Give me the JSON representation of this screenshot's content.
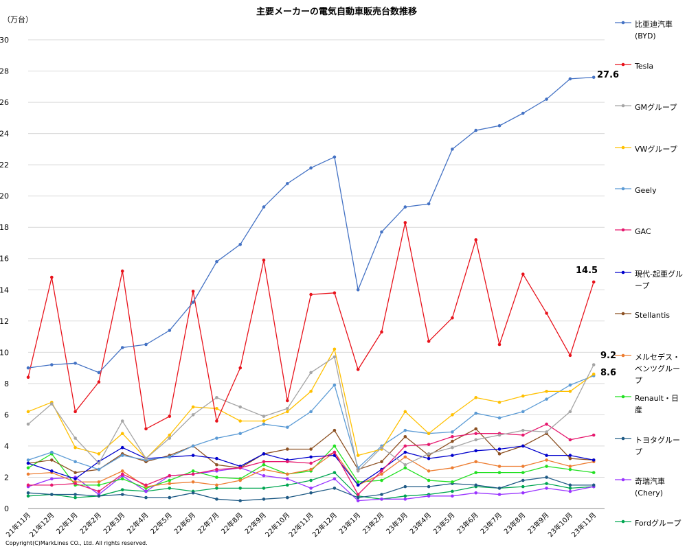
{
  "chart_data": {
    "type": "line",
    "title": "主要メーカーの電気自動車販売台数推移",
    "ylabel": "（万台）",
    "xlabel": "",
    "ylim": [
      0,
      30
    ],
    "yticks": [
      0,
      2,
      4,
      6,
      8,
      10,
      12,
      14,
      16,
      18,
      20,
      22,
      24,
      26,
      28,
      30
    ],
    "grid": "horizontal",
    "legend": "right",
    "categories": [
      "21年11月",
      "21年12月",
      "22年1月",
      "22年2月",
      "22年3月",
      "22年4月",
      "22年5月",
      "22年6月",
      "22年7月",
      "22年8月",
      "22年9月",
      "22年10月",
      "22年11月",
      "22年12月",
      "23年1月",
      "23年2月",
      "23年3月",
      "23年4月",
      "23年5月",
      "23年6月",
      "23年7月",
      "23年8月",
      "23年9月",
      "23年10月",
      "23年11月"
    ],
    "series": [
      {
        "name": "比亜迪汽車(BYD)",
        "color": "#4472C4",
        "values": [
          9.0,
          9.2,
          9.3,
          8.7,
          10.3,
          10.5,
          11.4,
          13.2,
          15.8,
          16.9,
          19.3,
          20.8,
          21.8,
          22.5,
          14.0,
          17.7,
          19.3,
          19.5,
          23.0,
          24.2,
          24.5,
          25.3,
          26.2,
          27.5,
          27.6
        ]
      },
      {
        "name": "Tesla",
        "color": "#E8121B",
        "values": [
          8.4,
          14.8,
          6.2,
          8.1,
          15.2,
          5.1,
          5.9,
          13.9,
          5.6,
          9.0,
          15.9,
          6.9,
          13.7,
          13.8,
          8.9,
          11.3,
          18.3,
          10.7,
          12.2,
          17.2,
          10.5,
          15.0,
          12.5,
          9.8,
          14.5
        ]
      },
      {
        "name": "GMグループ",
        "color": "#A5A5A5",
        "values": [
          5.4,
          6.7,
          4.5,
          2.9,
          5.6,
          3.2,
          4.5,
          6.0,
          7.1,
          6.5,
          5.9,
          6.4,
          8.7,
          9.7,
          2.4,
          3.9,
          2.8,
          3.5,
          3.9,
          4.4,
          4.7,
          5.0,
          4.9,
          6.2,
          9.2
        ]
      },
      {
        "name": "VWグループ",
        "color": "#FFC000",
        "values": [
          6.2,
          6.8,
          3.9,
          3.5,
          4.8,
          3.2,
          4.7,
          6.5,
          6.4,
          5.6,
          5.6,
          6.2,
          7.5,
          10.2,
          3.4,
          3.8,
          6.2,
          4.8,
          6.0,
          7.1,
          6.8,
          7.2,
          7.5,
          7.5,
          8.6
        ]
      },
      {
        "name": "Geely",
        "color": "#5B9BD5",
        "values": [
          3.1,
          3.6,
          3.0,
          2.5,
          3.4,
          3.1,
          3.3,
          4.0,
          4.5,
          4.8,
          5.4,
          5.2,
          6.2,
          7.9,
          2.6,
          4.0,
          5.0,
          4.8,
          4.9,
          6.1,
          5.8,
          6.2,
          7.0,
          7.9,
          8.5
        ]
      },
      {
        "name": "GAC",
        "color": "#E6186E",
        "values": [
          1.5,
          1.5,
          1.6,
          1.1,
          2.2,
          1.5,
          2.1,
          2.2,
          2.5,
          2.6,
          3.0,
          3.0,
          2.9,
          3.6,
          0.9,
          2.4,
          4.0,
          4.1,
          4.6,
          4.8,
          4.8,
          4.7,
          5.4,
          4.4,
          4.7
        ]
      },
      {
        "name": "現代-起亜グループ",
        "color": "#0000CC",
        "values": [
          2.9,
          2.4,
          1.9,
          3.0,
          3.9,
          3.2,
          3.3,
          3.4,
          3.2,
          2.7,
          3.5,
          3.1,
          3.3,
          3.4,
          1.5,
          2.5,
          3.6,
          3.2,
          3.4,
          3.7,
          3.8,
          4.0,
          3.4,
          3.4,
          3.1
        ]
      },
      {
        "name": "Stellantis",
        "color": "#8C5022",
        "values": [
          2.9,
          3.1,
          2.3,
          2.5,
          3.5,
          3.0,
          3.4,
          4.0,
          2.8,
          2.6,
          3.5,
          3.8,
          3.8,
          5.0,
          2.5,
          3.0,
          4.6,
          3.4,
          4.3,
          5.1,
          3.5,
          4.0,
          4.8,
          3.2,
          3.1
        ]
      },
      {
        "name": "メルセデス・ベンツグループ",
        "color": "#ED7D31",
        "values": [
          2.2,
          2.3,
          1.7,
          1.7,
          2.4,
          1.4,
          1.6,
          1.7,
          1.5,
          1.8,
          2.5,
          2.2,
          2.5,
          3.6,
          1.5,
          2.2,
          3.3,
          2.4,
          2.6,
          3.0,
          2.7,
          2.7,
          3.1,
          2.7,
          3.0
        ]
      },
      {
        "name": "Renault・日産",
        "color": "#21E021",
        "values": [
          2.6,
          3.5,
          1.5,
          1.5,
          1.9,
          1.3,
          1.8,
          2.4,
          2.0,
          1.9,
          2.8,
          2.2,
          2.4,
          4.0,
          1.7,
          1.8,
          2.6,
          1.8,
          1.7,
          2.3,
          2.3,
          2.3,
          2.7,
          2.5,
          2.3
        ]
      },
      {
        "name": "トヨタグループ",
        "color": "#1F5A85",
        "values": [
          1.0,
          0.9,
          0.9,
          0.8,
          0.9,
          0.7,
          0.7,
          1.0,
          0.6,
          0.5,
          0.6,
          0.7,
          1.0,
          1.3,
          0.7,
          0.9,
          1.4,
          1.4,
          1.6,
          1.5,
          1.3,
          1.8,
          2.0,
          1.5,
          1.5
        ]
      },
      {
        "name": "奇瑞汽車(Chery)",
        "color": "#9933FF",
        "values": [
          1.4,
          1.9,
          2.0,
          0.9,
          2.1,
          1.1,
          2.1,
          2.2,
          2.4,
          2.6,
          2.1,
          1.9,
          1.3,
          1.9,
          0.5,
          0.6,
          0.6,
          0.8,
          0.8,
          1.0,
          0.9,
          1.0,
          1.3,
          1.1,
          1.4
        ]
      },
      {
        "name": "Fordグループ",
        "color": "#00A651",
        "values": [
          0.8,
          0.9,
          0.7,
          0.8,
          1.2,
          1.1,
          1.3,
          1.1,
          1.3,
          1.3,
          1.3,
          1.5,
          1.8,
          2.3,
          0.8,
          0.6,
          0.8,
          0.9,
          1.1,
          1.4,
          1.3,
          1.4,
          1.6,
          1.3,
          1.4
        ]
      }
    ],
    "annotations": [
      "27.6",
      "14.5",
      "9.2",
      "8.6"
    ]
  }
}
